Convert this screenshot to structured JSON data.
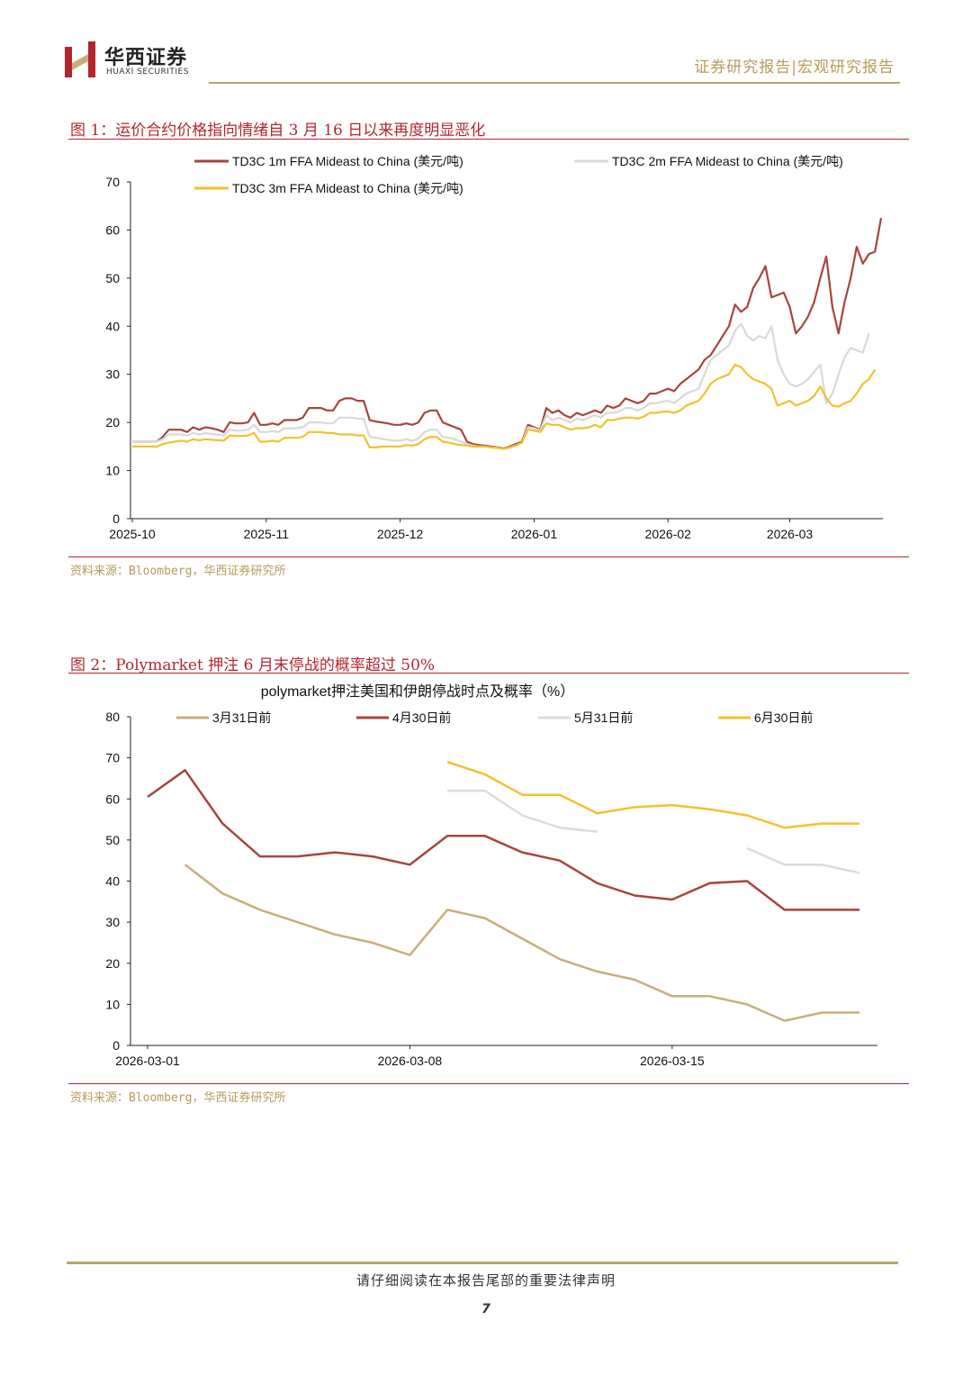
{
  "header": {
    "brand_cn": "华西证券",
    "brand_en": "HUAXI SECURITIES",
    "report_type": "证券研究报告|宏观研究报告",
    "logo_color": "#b3262e"
  },
  "figure1": {
    "title": "图 1：运价合约价格指向情绪自 3 月 16 日以来再度明显恶化",
    "source": "资料来源：Bloomberg，华西证券研究所"
  },
  "figure2": {
    "title": "图 2：Polymarket 押注 6 月末停战的概率超过 50%",
    "source": "资料来源：Bloomberg，华西证券研究所"
  },
  "footer": {
    "notice": "请仔细阅读在本报告尾部的重要法律声明",
    "page": "7"
  },
  "chart_data": [
    {
      "type": "line",
      "title": "",
      "xlabel": "",
      "ylabel": "",
      "ylim": [
        0,
        70
      ],
      "yticks": [
        "0",
        "10",
        "20",
        "30",
        "40",
        "50",
        "60",
        "70"
      ],
      "x_tick_labels": [
        "2025-10",
        "2025-11",
        "2025-12",
        "2026-01",
        "2026-02",
        "2026-03"
      ],
      "x_tick_index": [
        0,
        22,
        44,
        66,
        88,
        108
      ],
      "legend": "top",
      "series": [
        {
          "name": "TD3C 1m FFA Mideast to China (美元/吨)",
          "color": "#a8453c",
          "values": [
            16,
            16,
            16,
            16,
            16,
            17,
            18.5,
            18.5,
            18.5,
            18,
            19,
            18.5,
            19,
            18.8,
            18.5,
            18,
            20,
            19.8,
            19.8,
            20,
            22,
            19.5,
            19.5,
            19.8,
            19.5,
            20.5,
            20.5,
            20.5,
            21,
            23,
            23,
            23,
            22.5,
            22.5,
            24.5,
            25,
            25,
            24.5,
            24.5,
            20.5,
            20.2,
            20,
            19.8,
            19.5,
            19.5,
            19.8,
            19.5,
            20,
            22,
            22.5,
            22.5,
            20,
            19.5,
            19,
            18.5,
            16,
            15.5,
            15.3,
            15.2,
            15,
            14.8,
            14.6,
            15,
            15.5,
            16,
            19.5,
            19,
            18.5,
            23,
            22,
            22.5,
            21.5,
            21,
            22,
            21.5,
            22,
            22.5,
            22,
            23.5,
            23,
            23.5,
            25,
            24.5,
            24,
            24.5,
            26,
            26,
            26.5,
            27,
            26.5,
            28,
            29,
            30,
            31,
            33,
            34,
            36,
            38,
            40,
            44.5,
            43,
            44,
            48,
            50,
            52.5,
            46,
            46.5,
            47,
            44,
            38.5,
            40,
            42,
            45,
            50,
            54.5,
            44,
            38.5,
            45,
            50,
            56.5,
            53,
            55,
            55.5,
            62.5
          ]
        },
        {
          "name": "TD3C 2m FFA Mideast to China (美元/吨)",
          "color": "#d9d9d9",
          "values": [
            16,
            16,
            16,
            16,
            16,
            16.5,
            17.5,
            17.5,
            17.5,
            17.3,
            17.8,
            17.5,
            17.8,
            17.6,
            17.5,
            17.3,
            18.5,
            18.3,
            18.3,
            18.5,
            19.5,
            18,
            18,
            18.2,
            18,
            18.8,
            18.8,
            18.8,
            19,
            20,
            20,
            20,
            19.8,
            19.8,
            21,
            21,
            21,
            20.8,
            20.8,
            17,
            16.8,
            16.6,
            16.4,
            16.2,
            16.2,
            16.5,
            16.2,
            16.7,
            18,
            18.5,
            18.5,
            17,
            16.8,
            16.5,
            16,
            15.5,
            15.2,
            15,
            15,
            14.8,
            14.7,
            14.5,
            14.8,
            15.2,
            15.8,
            19,
            18.8,
            18.3,
            21.5,
            20.5,
            21,
            20.5,
            20,
            20.8,
            20.5,
            21,
            21.5,
            21,
            22,
            22,
            22.3,
            23,
            23,
            22.5,
            23,
            24,
            24,
            24.3,
            24.5,
            24,
            25,
            26,
            26.5,
            27,
            30,
            33,
            34,
            35,
            36,
            39,
            40.5,
            38,
            37,
            38,
            37.5,
            40,
            33,
            30,
            28,
            27.5,
            28,
            29,
            30.5,
            32,
            24,
            26,
            30,
            33.5,
            35.5,
            35,
            34.5,
            38.5
          ]
        },
        {
          "name": "TD3C 3m FFA Mideast to China (美元/吨)",
          "color": "#f2c12e",
          "values": [
            15,
            15,
            15,
            15,
            15,
            15.5,
            15.8,
            16,
            16.2,
            16,
            16.5,
            16.3,
            16.5,
            16.4,
            16.3,
            16.2,
            17.3,
            17.2,
            17.2,
            17.3,
            17.8,
            16,
            16,
            16.2,
            16,
            16.8,
            16.8,
            16.8,
            17,
            18,
            18,
            18,
            17.8,
            17.8,
            17.5,
            17.5,
            17.5,
            17.3,
            17.3,
            14.8,
            14.8,
            15,
            15,
            15,
            15,
            15.3,
            15.2,
            15.5,
            16.5,
            17,
            17,
            16,
            15.8,
            15.5,
            15.3,
            15.2,
            15,
            15,
            15,
            14.8,
            14.7,
            14.5,
            14.8,
            15.2,
            15.8,
            18.5,
            18.3,
            18,
            19.8,
            19.5,
            19.5,
            19,
            18.5,
            18.8,
            18.8,
            19,
            19.5,
            19,
            20.5,
            20.5,
            20.8,
            21,
            21,
            20.8,
            21.2,
            22,
            22,
            22.2,
            22.3,
            22,
            22.5,
            23.5,
            24,
            24.5,
            26,
            28,
            29,
            29.5,
            30,
            32,
            31.5,
            30,
            29,
            28.5,
            28,
            27,
            23.5,
            24,
            24.5,
            23.5,
            24,
            24.5,
            25.5,
            27.5,
            25,
            23.5,
            23.3,
            24,
            24.5,
            26,
            28,
            29,
            31
          ]
        }
      ]
    },
    {
      "type": "line",
      "title": "polymarket押注美国和伊朗停战时点及概率（%）",
      "xlabel": "",
      "ylabel": "",
      "ylim": [
        0,
        80
      ],
      "yticks": [
        "0",
        "10",
        "20",
        "30",
        "40",
        "50",
        "60",
        "70",
        "80"
      ],
      "x_tick_labels": [
        "2026-03-01",
        "2026-03-08",
        "2026-03-15"
      ],
      "x_tick_index": [
        0,
        7,
        14
      ],
      "legend": "top",
      "series": [
        {
          "name": "3月31日前",
          "color": "#c9ae7a",
          "values": [
            null,
            44,
            37,
            33,
            30,
            27,
            25,
            22,
            33,
            31,
            26,
            21,
            18,
            16,
            12,
            12,
            10,
            6,
            8,
            8
          ]
        },
        {
          "name": "4月30日前",
          "color": "#a8453c",
          "values": [
            60.5,
            67,
            54,
            46,
            46,
            47,
            46,
            44,
            51,
            51,
            47,
            45,
            39.5,
            36.5,
            35.5,
            39.5,
            40,
            33,
            33,
            33
          ]
        },
        {
          "name": "5月31日前",
          "color": "#dcdcdc",
          "values": [
            null,
            null,
            null,
            null,
            null,
            null,
            null,
            null,
            62,
            62,
            56,
            53,
            52,
            null,
            null,
            null,
            48,
            44,
            44,
            42
          ]
        },
        {
          "name": "6月30日前",
          "color": "#f2c12e",
          "values": [
            null,
            null,
            null,
            null,
            null,
            null,
            null,
            null,
            69,
            66,
            61,
            61,
            56.5,
            58,
            58.5,
            57.5,
            56,
            53,
            54,
            54
          ]
        }
      ]
    }
  ]
}
